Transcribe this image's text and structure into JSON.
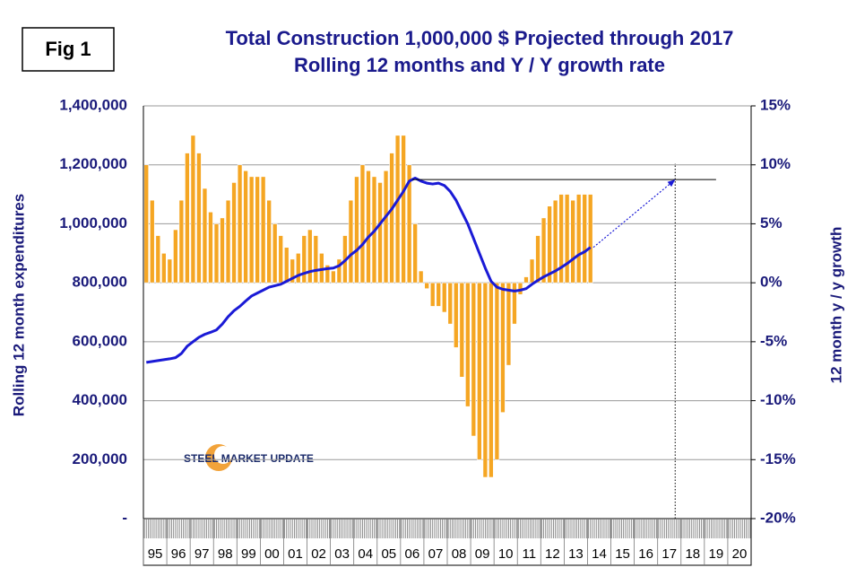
{
  "chart_data": {
    "type": "bar_line",
    "figure_label": "Fig 1",
    "title": "Total Construction 1,000,000 $ Projected through 2017",
    "subtitle": "Rolling 12 months and Y / Y growth rate",
    "y_label": "Rolling 12 month expenditures",
    "y2_label": "12 month y / y growth",
    "watermark": "STEEL MARKET UPDATE",
    "categories": [
      "95",
      null,
      null,
      null,
      "96",
      null,
      null,
      null,
      "97",
      null,
      null,
      null,
      "98",
      null,
      null,
      null,
      "99",
      null,
      null,
      null,
      "00",
      null,
      null,
      null,
      "01",
      null,
      null,
      null,
      "02",
      null,
      null,
      null,
      "03",
      null,
      null,
      null,
      "04",
      null,
      null,
      null,
      "05",
      null,
      null,
      null,
      "06",
      null,
      null,
      null,
      "07",
      null,
      null,
      null,
      "08",
      null,
      null,
      null,
      "09",
      null,
      null,
      null,
      "10",
      null,
      null,
      null,
      "11",
      null,
      null,
      null,
      "12",
      null,
      null,
      null,
      "13",
      null,
      null,
      null,
      "14",
      null,
      null,
      null,
      "15",
      null,
      null,
      null,
      "16",
      null,
      null,
      null,
      "17",
      null,
      null,
      null,
      "18",
      null,
      null,
      null,
      "19",
      null,
      null,
      null,
      "20",
      null,
      null,
      null
    ],
    "series": [
      {
        "name": "Y / Y growth rate",
        "type": "bar",
        "axis": "y2",
        "color": "#f5a623",
        "values": [
          10,
          7,
          4,
          2.5,
          2,
          4.5,
          7,
          11,
          12.5,
          11,
          8,
          6,
          5,
          5.5,
          7,
          8.5,
          10,
          9.5,
          9,
          9,
          9,
          7,
          5,
          4,
          3,
          2,
          2.5,
          4,
          4.5,
          4,
          2.5,
          1.5,
          1,
          2,
          4,
          7,
          9,
          10,
          9.5,
          9,
          8.5,
          9.5,
          11,
          12.5,
          12.5,
          10,
          5,
          1,
          -0.5,
          -2,
          -2,
          -2.5,
          -3.5,
          -5.5,
          -8,
          -10.5,
          -13,
          -15,
          -16.5,
          -16.5,
          -15,
          -11,
          -7,
          -3.5,
          -1,
          0.5,
          2,
          4,
          5.5,
          6.5,
          7,
          7.5,
          7.5,
          7,
          7.5,
          7.5,
          7.5,
          null,
          null,
          null,
          null,
          null,
          null,
          null,
          null,
          null,
          null,
          null,
          null,
          null,
          null,
          null,
          null,
          null,
          null,
          null,
          null,
          null,
          null,
          null,
          null,
          null,
          null,
          null
        ]
      },
      {
        "name": "Rolling 12 months",
        "type": "line",
        "color": "#1a1ad6",
        "values": [
          530000,
          533000,
          536000,
          539000,
          542000,
          546000,
          560000,
          585000,
          600000,
          615000,
          625000,
          632000,
          640000,
          660000,
          685000,
          705000,
          720000,
          738000,
          755000,
          765000,
          775000,
          785000,
          790000,
          795000,
          805000,
          815000,
          825000,
          832000,
          838000,
          842000,
          845000,
          848000,
          850000,
          858000,
          875000,
          895000,
          910000,
          930000,
          955000,
          975000,
          1000000,
          1025000,
          1050000,
          1080000,
          1110000,
          1145000,
          1155000,
          1145000,
          1138000,
          1135000,
          1138000,
          1130000,
          1110000,
          1080000,
          1040000,
          1000000,
          950000,
          900000,
          850000,
          805000,
          785000,
          778000,
          775000,
          772000,
          775000,
          780000,
          795000,
          808000,
          820000,
          830000,
          840000,
          852000,
          865000,
          880000,
          895000,
          905000,
          920000,
          null,
          null,
          null,
          null,
          null,
          null,
          null,
          null,
          null,
          null,
          null,
          null,
          null,
          null,
          null,
          null,
          null,
          null,
          null,
          null,
          null,
          null,
          null,
          null,
          null,
          null,
          null
        ]
      }
    ],
    "projection": {
      "color": "#1a1ad6",
      "x": [
        2014.25,
        2017.75
      ],
      "values": [
        920000,
        1150000
      ]
    },
    "reference_line": {
      "value": 1150000,
      "x": [
        2006.5,
        2019.5
      ]
    },
    "ylim": [
      0,
      1400000
    ],
    "yticks": [
      {
        "value": 0,
        "label": "-"
      },
      {
        "value": 200000,
        "label": "200,000"
      },
      {
        "value": 400000,
        "label": "400,000"
      },
      {
        "value": 600000,
        "label": "600,000"
      },
      {
        "value": 800000,
        "label": "800,000"
      },
      {
        "value": 1000000,
        "label": "1,000,000"
      },
      {
        "value": 1200000,
        "label": "1,200,000"
      },
      {
        "value": 1400000,
        "label": "1,400,000"
      }
    ],
    "y2lim": [
      -20,
      15
    ],
    "y2ticks": [
      {
        "value": -20,
        "label": "-20%"
      },
      {
        "value": -15,
        "label": "-15%"
      },
      {
        "value": -10,
        "label": "-10%"
      },
      {
        "value": -5,
        "label": "-5%"
      },
      {
        "value": 0,
        "label": "0%"
      },
      {
        "value": 5,
        "label": "5%"
      },
      {
        "value": 10,
        "label": "10%"
      },
      {
        "value": 15,
        "label": "15%"
      }
    ],
    "x_start_year": 1995,
    "grid": true
  }
}
